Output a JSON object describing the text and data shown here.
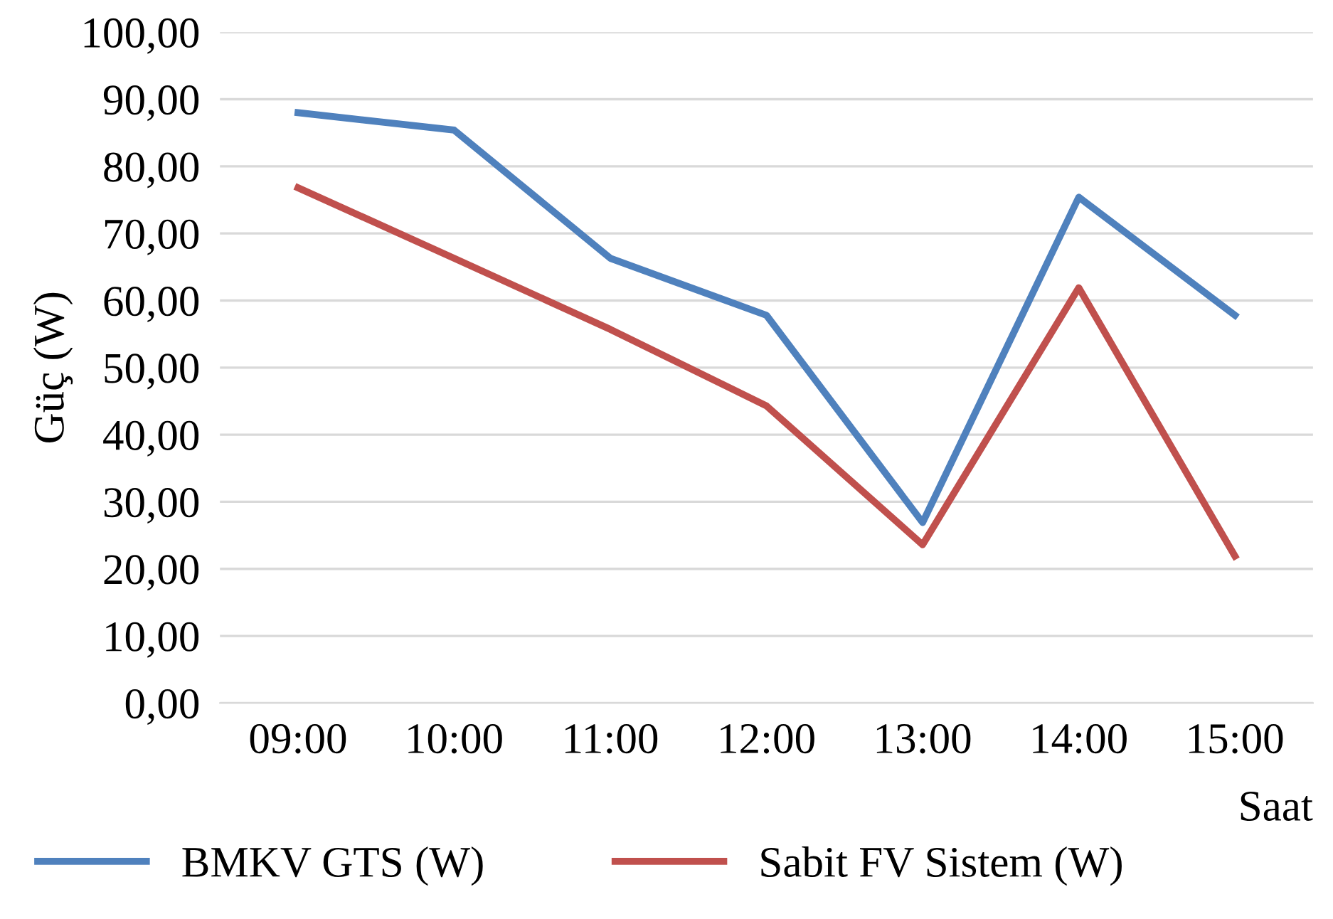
{
  "chart_data": {
    "type": "line",
    "xlabel": "Saat",
    "ylabel": "Güç (W)",
    "categories": [
      "09:00",
      "10:00",
      "11:00",
      "12:00",
      "13:00",
      "14:00",
      "15:00"
    ],
    "series": [
      {
        "name": "BMKV GTS (W)",
        "color": "#4f81bd",
        "values": [
          88.0,
          85.4,
          66.3,
          57.8,
          26.9,
          75.4,
          57.8
        ]
      },
      {
        "name": "Sabit FV Sistem (W)",
        "color": "#c0504d",
        "values": [
          76.8,
          66.3,
          55.7,
          44.3,
          23.6,
          61.9,
          21.9
        ]
      }
    ],
    "ylim": [
      0,
      100
    ],
    "yticks": [
      {
        "value": 0,
        "label": "0,00"
      },
      {
        "value": 10,
        "label": "10,00"
      },
      {
        "value": 20,
        "label": "20,00"
      },
      {
        "value": 30,
        "label": "30,00"
      },
      {
        "value": 40,
        "label": "40,00"
      },
      {
        "value": 50,
        "label": "50,00"
      },
      {
        "value": 60,
        "label": "60,00"
      },
      {
        "value": 70,
        "label": "70,00"
      },
      {
        "value": 80,
        "label": "80,00"
      },
      {
        "value": 90,
        "label": "90,00"
      },
      {
        "value": 100,
        "label": "100,00"
      }
    ],
    "grid": "y",
    "legend": "bottom",
    "marker": "none",
    "line_style": "solid"
  }
}
